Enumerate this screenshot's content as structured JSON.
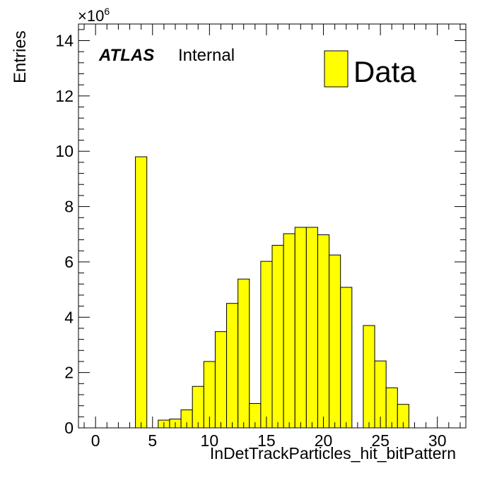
{
  "chart_data": {
    "type": "bar",
    "title": "",
    "xlabel": "InDetTrackParticles_hit_bitPattern",
    "ylabel": "Entries",
    "y_multiplier_label": "×10",
    "y_multiplier_exponent": "6",
    "xlim": [
      -1.5,
      32.5
    ],
    "ylim": [
      0,
      14.6
    ],
    "x_ticks": [
      0,
      5,
      10,
      15,
      20,
      25,
      30
    ],
    "y_ticks": [
      0,
      2,
      4,
      6,
      8,
      10,
      12,
      14
    ],
    "bin_width": 1,
    "bin_centers": [
      0,
      1,
      2,
      3,
      4,
      5,
      6,
      7,
      8,
      9,
      10,
      11,
      12,
      13,
      14,
      15,
      16,
      17,
      18,
      19,
      20,
      21,
      22,
      23,
      24,
      25,
      26,
      27,
      28,
      29,
      30,
      31
    ],
    "values": [
      0,
      0,
      0,
      0,
      9.8,
      0,
      0.28,
      0.32,
      0.65,
      1.5,
      2.4,
      3.48,
      4.5,
      5.38,
      0.88,
      6.02,
      6.6,
      7.02,
      7.25,
      7.25,
      6.98,
      6.25,
      5.08,
      0,
      3.7,
      2.42,
      1.45,
      0.85,
      0,
      0,
      0,
      0
    ],
    "fill_color": "#ffff00",
    "edge_color": "#000000",
    "grid": false,
    "legend": {
      "entries": [
        "Data"
      ],
      "placement": "top-right"
    },
    "annotations": {
      "atlas": "ATLAS",
      "status": "Internal"
    }
  }
}
